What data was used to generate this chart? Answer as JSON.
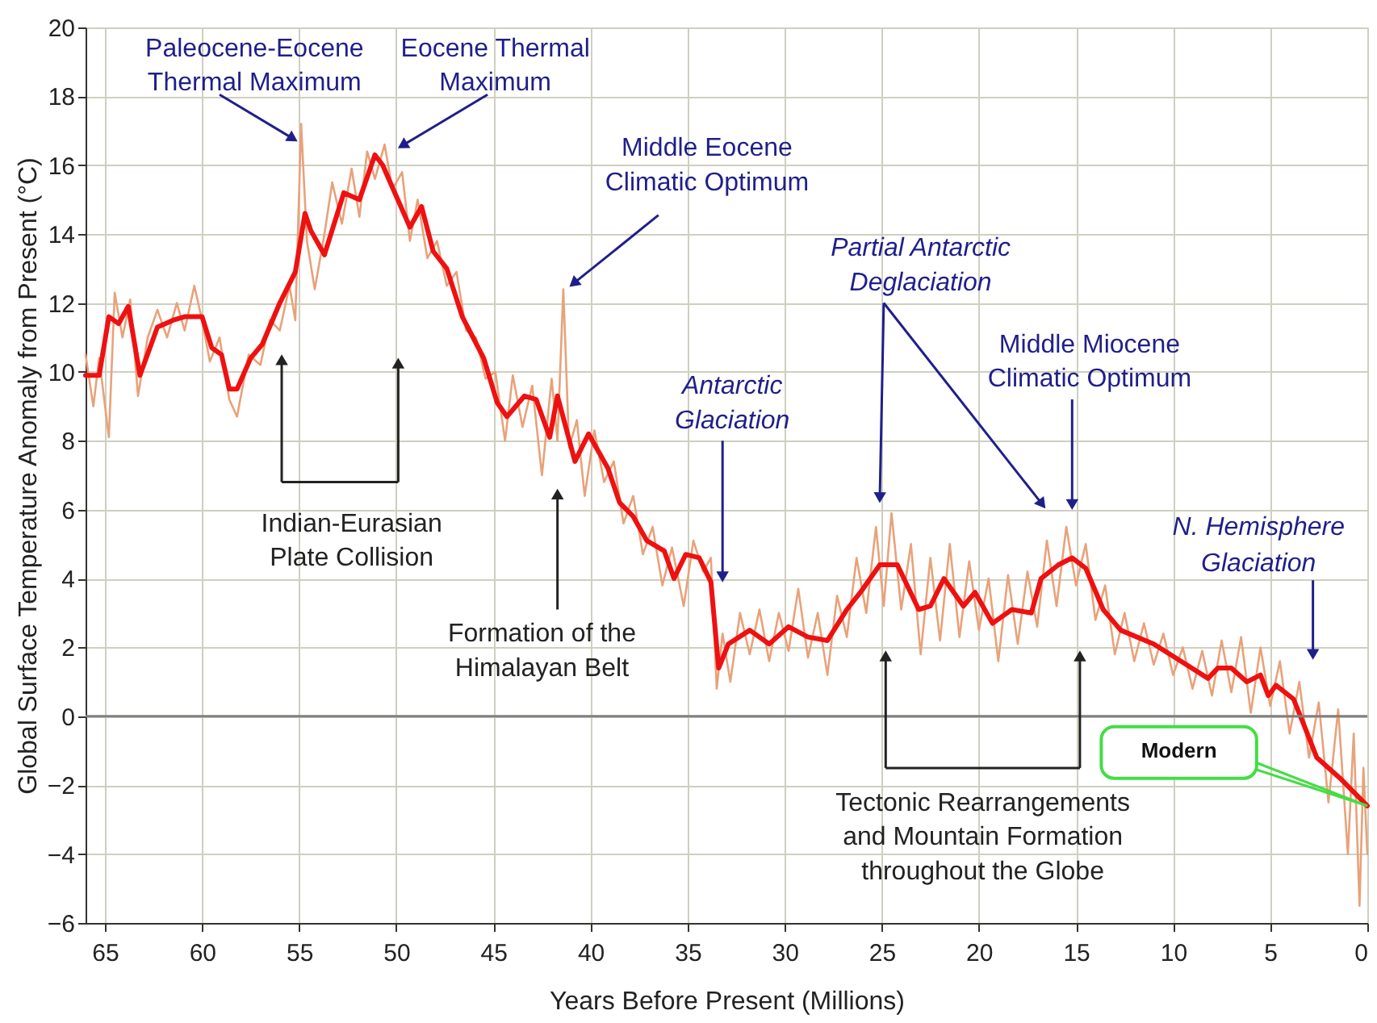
{
  "chart_data": {
    "type": "line",
    "xlabel": "Years Before Present (Millions)",
    "ylabel": "Global Surface Temperature Anomaly from Present (°C)",
    "xlim": [
      66,
      0
    ],
    "xticks": [
      65,
      60,
      55,
      50,
      45,
      40,
      35,
      30,
      25,
      20,
      15,
      10,
      5,
      0
    ],
    "ylim": [
      -6,
      20
    ],
    "yticks": [
      -6,
      -4,
      -2,
      0,
      2,
      4,
      6,
      8,
      10,
      12,
      14,
      16,
      18,
      20
    ],
    "grid": true,
    "marker": "none",
    "line_style": "solid",
    "ref_lines": [
      {
        "axis": "y",
        "value": 0,
        "color": "#7f7f7f"
      }
    ],
    "series": [
      {
        "color": "#e8a27a",
        "x": [
          66.0,
          65.6,
          65.3,
          64.8,
          64.5,
          64.1,
          63.7,
          63.3,
          62.8,
          62.3,
          61.8,
          61.3,
          60.9,
          60.4,
          60.0,
          59.6,
          59.1,
          58.6,
          58.2,
          57.6,
          57.0,
          56.5,
          56.0,
          55.5,
          55.2,
          54.9,
          54.6,
          54.2,
          53.7,
          53.3,
          52.8,
          52.3,
          51.9,
          51.5,
          51.1,
          50.6,
          50.2,
          49.7,
          49.3,
          48.9,
          48.4,
          47.9,
          47.4,
          46.9,
          46.4,
          45.9,
          45.4,
          44.9,
          44.4,
          44.0,
          43.5,
          43.0,
          42.5,
          42.0,
          41.7,
          41.4,
          41.1,
          40.7,
          40.3,
          39.8,
          39.3,
          38.8,
          38.3,
          37.8,
          37.3,
          36.8,
          36.3,
          35.8,
          35.2,
          34.7,
          34.2,
          33.8,
          33.5,
          33.2,
          32.8,
          32.3,
          31.8,
          31.3,
          30.8,
          30.3,
          29.8,
          29.3,
          28.8,
          28.3,
          27.8,
          27.3,
          26.8,
          26.3,
          25.8,
          25.3,
          24.9,
          24.5,
          24.0,
          23.5,
          23.0,
          22.5,
          22.0,
          21.5,
          21.0,
          20.5,
          20.0,
          19.5,
          19.0,
          18.5,
          18.0,
          17.5,
          17.0,
          16.5,
          16.0,
          15.5,
          15.0,
          14.5,
          14.0,
          13.5,
          13.0,
          12.5,
          12.0,
          11.5,
          11.0,
          10.5,
          10.0,
          9.5,
          9.0,
          8.5,
          8.0,
          7.5,
          7.0,
          6.5,
          6.0,
          5.5,
          5.0,
          4.5,
          4.0,
          3.5,
          3.0,
          2.5,
          2.0,
          1.5,
          1.0,
          0.7,
          0.4,
          0.2,
          0.0
        ],
        "values": [
          10.5,
          9.0,
          10.4,
          8.1,
          12.3,
          11.0,
          12.1,
          9.3,
          11.0,
          11.8,
          11.0,
          12.0,
          11.2,
          12.5,
          11.5,
          10.3,
          11.0,
          9.2,
          8.7,
          10.5,
          10.2,
          11.5,
          11.2,
          12.5,
          11.5,
          17.2,
          13.8,
          12.4,
          14.0,
          15.5,
          14.3,
          15.9,
          14.5,
          16.4,
          15.6,
          16.6,
          15.3,
          15.8,
          13.8,
          15.0,
          13.3,
          13.8,
          12.5,
          12.9,
          11.2,
          11.0,
          9.8,
          10.0,
          8.0,
          9.9,
          8.4,
          9.6,
          7.0,
          9.8,
          8.0,
          12.4,
          7.8,
          8.6,
          6.4,
          8.3,
          6.8,
          7.4,
          5.6,
          6.4,
          4.7,
          5.5,
          3.8,
          4.9,
          3.2,
          5.1,
          4.2,
          4.6,
          0.8,
          2.4,
          1.0,
          3.0,
          1.8,
          3.1,
          1.6,
          3.0,
          1.9,
          3.7,
          1.7,
          3.0,
          1.2,
          3.5,
          2.3,
          4.6,
          3.0,
          5.5,
          3.2,
          5.9,
          3.1,
          5.0,
          1.8,
          4.6,
          2.2,
          5.0,
          2.3,
          4.5,
          2.5,
          4.0,
          1.6,
          4.1,
          2.1,
          4.2,
          2.6,
          5.1,
          3.2,
          5.5,
          3.8,
          5.0,
          2.8,
          3.8,
          1.8,
          3.0,
          1.6,
          2.7,
          1.5,
          2.4,
          1.2,
          2.0,
          0.8,
          1.9,
          0.6,
          2.2,
          0.7,
          2.3,
          0.1,
          2.0,
          0.3,
          1.6,
          -0.5,
          1.0,
          -1.2,
          0.4,
          -2.5,
          0.2,
          -4.0,
          -0.5,
          -5.5,
          -1.5,
          -4.0
        ]
      },
      {
        "color": "#ee1111",
        "x": [
          66.0,
          65.3,
          64.8,
          64.3,
          63.8,
          63.2,
          62.3,
          61.5,
          60.9,
          60.0,
          59.5,
          59.0,
          58.6,
          58.2,
          57.5,
          56.9,
          56.0,
          55.2,
          54.7,
          54.4,
          53.7,
          52.7,
          51.9,
          51.1,
          50.7,
          49.3,
          48.7,
          48.1,
          47.4,
          46.6,
          45.5,
          44.8,
          44.3,
          43.4,
          42.8,
          42.1,
          41.7,
          40.8,
          40.1,
          39.1,
          38.5,
          37.8,
          37.1,
          36.8,
          36.2,
          35.7,
          35.1,
          34.4,
          33.8,
          33.4,
          32.9,
          31.8,
          30.8,
          29.8,
          28.8,
          27.8,
          26.8,
          26.1,
          25.1,
          24.2,
          23.1,
          22.5,
          21.8,
          20.8,
          20.2,
          19.3,
          18.3,
          17.3,
          16.8,
          15.9,
          15.2,
          14.5,
          13.6,
          12.7,
          11.0,
          9.6,
          8.2,
          7.7,
          7.0,
          6.2,
          5.5,
          5.1,
          4.7,
          3.8,
          3.3,
          2.6,
          1.4,
          0.0
        ],
        "values": [
          9.9,
          9.9,
          11.6,
          11.4,
          11.9,
          9.9,
          11.3,
          11.5,
          11.6,
          11.6,
          10.7,
          10.5,
          9.5,
          9.5,
          10.4,
          10.8,
          12.0,
          12.9,
          14.6,
          14.1,
          13.4,
          15.2,
          15.0,
          16.3,
          16.0,
          14.2,
          14.8,
          13.5,
          13.0,
          11.6,
          10.4,
          9.1,
          8.7,
          9.3,
          9.2,
          8.1,
          9.3,
          7.4,
          8.2,
          7.2,
          6.2,
          5.8,
          5.1,
          5.0,
          4.8,
          4.0,
          4.7,
          4.6,
          3.9,
          1.4,
          2.1,
          2.5,
          2.1,
          2.6,
          2.3,
          2.2,
          3.1,
          3.6,
          4.4,
          4.4,
          3.1,
          3.2,
          4.0,
          3.2,
          3.6,
          2.7,
          3.1,
          3.0,
          4.0,
          4.4,
          4.6,
          4.3,
          3.1,
          2.5,
          2.1,
          1.6,
          1.1,
          1.4,
          1.4,
          1.0,
          1.2,
          0.6,
          0.9,
          0.5,
          -0.2,
          -1.2,
          -1.8,
          -2.6
        ]
      }
    ],
    "annotations": [
      {
        "text": "Paleocene-Eocene\nThermal Maximum",
        "x": 55.4,
        "y": 16.8
      },
      {
        "text": "Eocene Thermal\nMaximum",
        "x": 49.6,
        "y": 16.6
      },
      {
        "text": "Middle Eocene\nClimatic Optimum",
        "x": 40.8,
        "y": 12.6
      },
      "Indian-Eurasian\nPlate Collision",
      {
        "text": "Formation of the\nHimalayan Belt",
        "x": 41.7,
        "y": 6.4
      },
      {
        "text": "Antarctic\nGlaciation",
        "x": 33.2,
        "y": 4.1
      },
      "Partial Antarctic\nDeglaciation",
      {
        "text": "Middle Miocene\nClimatic Optimum",
        "x": 15.2,
        "y": 6.2
      },
      "Tectonic Rearrangements\nand Mountain Formation\nthroughout the Globe",
      {
        "text": "N. Hemisphere\nGlaciation",
        "x": 2.8,
        "y": 1.85
      },
      "Modern"
    ]
  }
}
